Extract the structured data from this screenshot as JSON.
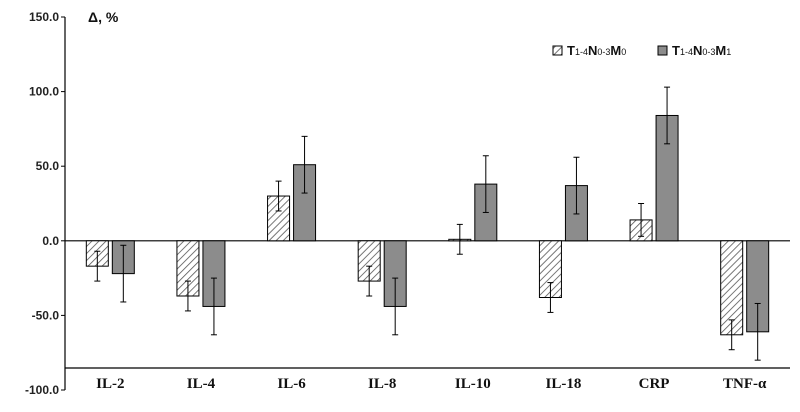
{
  "chart_data": {
    "type": "bar",
    "title": "",
    "ylabel": "Δ, %",
    "xlabel": "",
    "ylim": [
      -100,
      150
    ],
    "yticks": [
      150,
      100,
      50,
      0,
      -50,
      -100
    ],
    "ytick_labels": [
      "150.0",
      "100.0",
      "50.0",
      "0.0",
      "-50.0",
      "-100.0"
    ],
    "categories": [
      "IL-2",
      "IL-4",
      "IL-6",
      "IL-8",
      "IL-10",
      "IL-18",
      "CRP",
      "TNF-α"
    ],
    "series": [
      {
        "name": "T1-4N0-3M0",
        "name_parts": [
          {
            "text": "T",
            "sub": false
          },
          {
            "text": "1-4",
            "sub": true
          },
          {
            "text": "N",
            "sub": false
          },
          {
            "text": "0-3",
            "sub": true
          },
          {
            "text": "M",
            "sub": false
          },
          {
            "text": "0",
            "sub": true
          }
        ],
        "pattern": "hatched",
        "values": [
          -17,
          -37,
          30,
          -27,
          1,
          -38,
          14,
          -63
        ],
        "errors": [
          10,
          10,
          10,
          10,
          10,
          10,
          11,
          10
        ]
      },
      {
        "name": "T1-4N0-3M1",
        "name_parts": [
          {
            "text": "T",
            "sub": false
          },
          {
            "text": "1-4",
            "sub": true
          },
          {
            "text": "N",
            "sub": false
          },
          {
            "text": "0-3",
            "sub": true
          },
          {
            "text": "M",
            "sub": false
          },
          {
            "text": "1",
            "sub": true
          }
        ],
        "pattern": "solid-gray",
        "values": [
          -22,
          -44,
          51,
          -44,
          38,
          37,
          84,
          -61
        ],
        "errors": [
          19,
          19,
          19,
          19,
          19,
          19,
          19,
          19
        ]
      }
    ],
    "legend_position": "top-right",
    "grid": false,
    "colors": {
      "solid": "#8c8c8c",
      "hatch": "#555555",
      "axis": "#000000"
    }
  }
}
